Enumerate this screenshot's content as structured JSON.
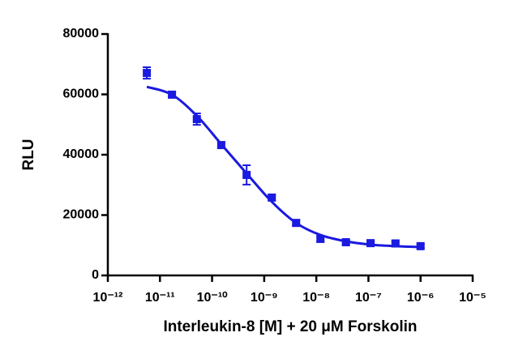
{
  "chart_data": {
    "type": "scatter",
    "x_label": "Interleukin-8 [M] + 20 μM Forskolin",
    "y_label": "RLU",
    "color": "#1a1ae0",
    "log_x": true,
    "xlim": [
      1e-12,
      1e-05
    ],
    "xticks": [
      {
        "value": 1e-12,
        "label": "10⁻¹²"
      },
      {
        "value": 1e-11,
        "label": "10⁻¹¹"
      },
      {
        "value": 1e-10,
        "label": "10⁻¹⁰"
      },
      {
        "value": 1e-09,
        "label": "10⁻⁹"
      },
      {
        "value": 1e-08,
        "label": "10⁻⁸"
      },
      {
        "value": 1e-07,
        "label": "10⁻⁷"
      },
      {
        "value": 1e-06,
        "label": "10⁻⁶"
      },
      {
        "value": 1e-05,
        "label": "10⁻⁵"
      }
    ],
    "ylim": [
      0,
      80000
    ],
    "yticks": [
      0,
      20000,
      40000,
      60000,
      80000
    ],
    "points": {
      "x": [
        5.6e-12,
        1.7e-11,
        5.1e-11,
        1.5e-10,
        4.6e-10,
        1.4e-09,
        4.1e-09,
        1.2e-08,
        3.7e-08,
        1.1e-07,
        3.3e-07,
        1e-06
      ],
      "values": [
        67100,
        59900,
        51800,
        43200,
        33300,
        25800,
        17400,
        12100,
        11000,
        10700,
        10600,
        9700
      ],
      "errors": [
        1900,
        900,
        1900,
        900,
        3200,
        900,
        900,
        900,
        600,
        600,
        600,
        600
      ]
    },
    "fit": {
      "x": [
        5.6e-12,
        1.7e-11,
        5.1e-11,
        1.5e-10,
        4.6e-10,
        1.4e-09,
        4.1e-09,
        1.2e-08,
        3.7e-08,
        1.1e-07,
        3.3e-07,
        1e-06
      ],
      "values": [
        62500,
        59900,
        52900,
        43500,
        33800,
        24400,
        17400,
        13400,
        11300,
        10200,
        9700,
        9400
      ]
    }
  }
}
